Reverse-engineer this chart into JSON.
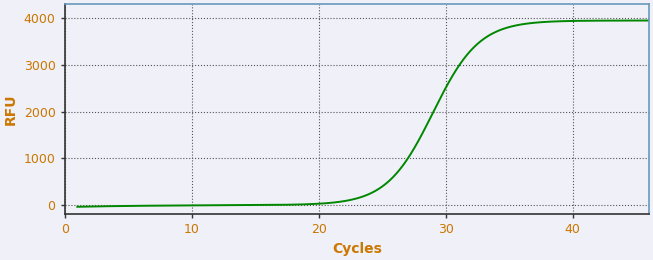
{
  "title": "",
  "xlabel": "Cycles",
  "ylabel": "RFU",
  "xlim": [
    0,
    46
  ],
  "ylim": [
    -200,
    4300
  ],
  "xticks": [
    0,
    10,
    20,
    30,
    40
  ],
  "yticks": [
    0,
    1000,
    2000,
    3000,
    4000
  ],
  "line_color": "#008800",
  "line_width": 1.4,
  "grid_color": "#555555",
  "grid_style": "dotted",
  "background_color": "#f0f0f8",
  "spine_color_lr": "#6699bb",
  "spine_color_tb": "#333333",
  "tick_label_color": "#cc7700",
  "axis_label_color": "#cc7700",
  "sigmoid_L": 3950,
  "sigmoid_k": 0.55,
  "sigmoid_x0": 29.0,
  "x_start": 1,
  "x_end": 46
}
